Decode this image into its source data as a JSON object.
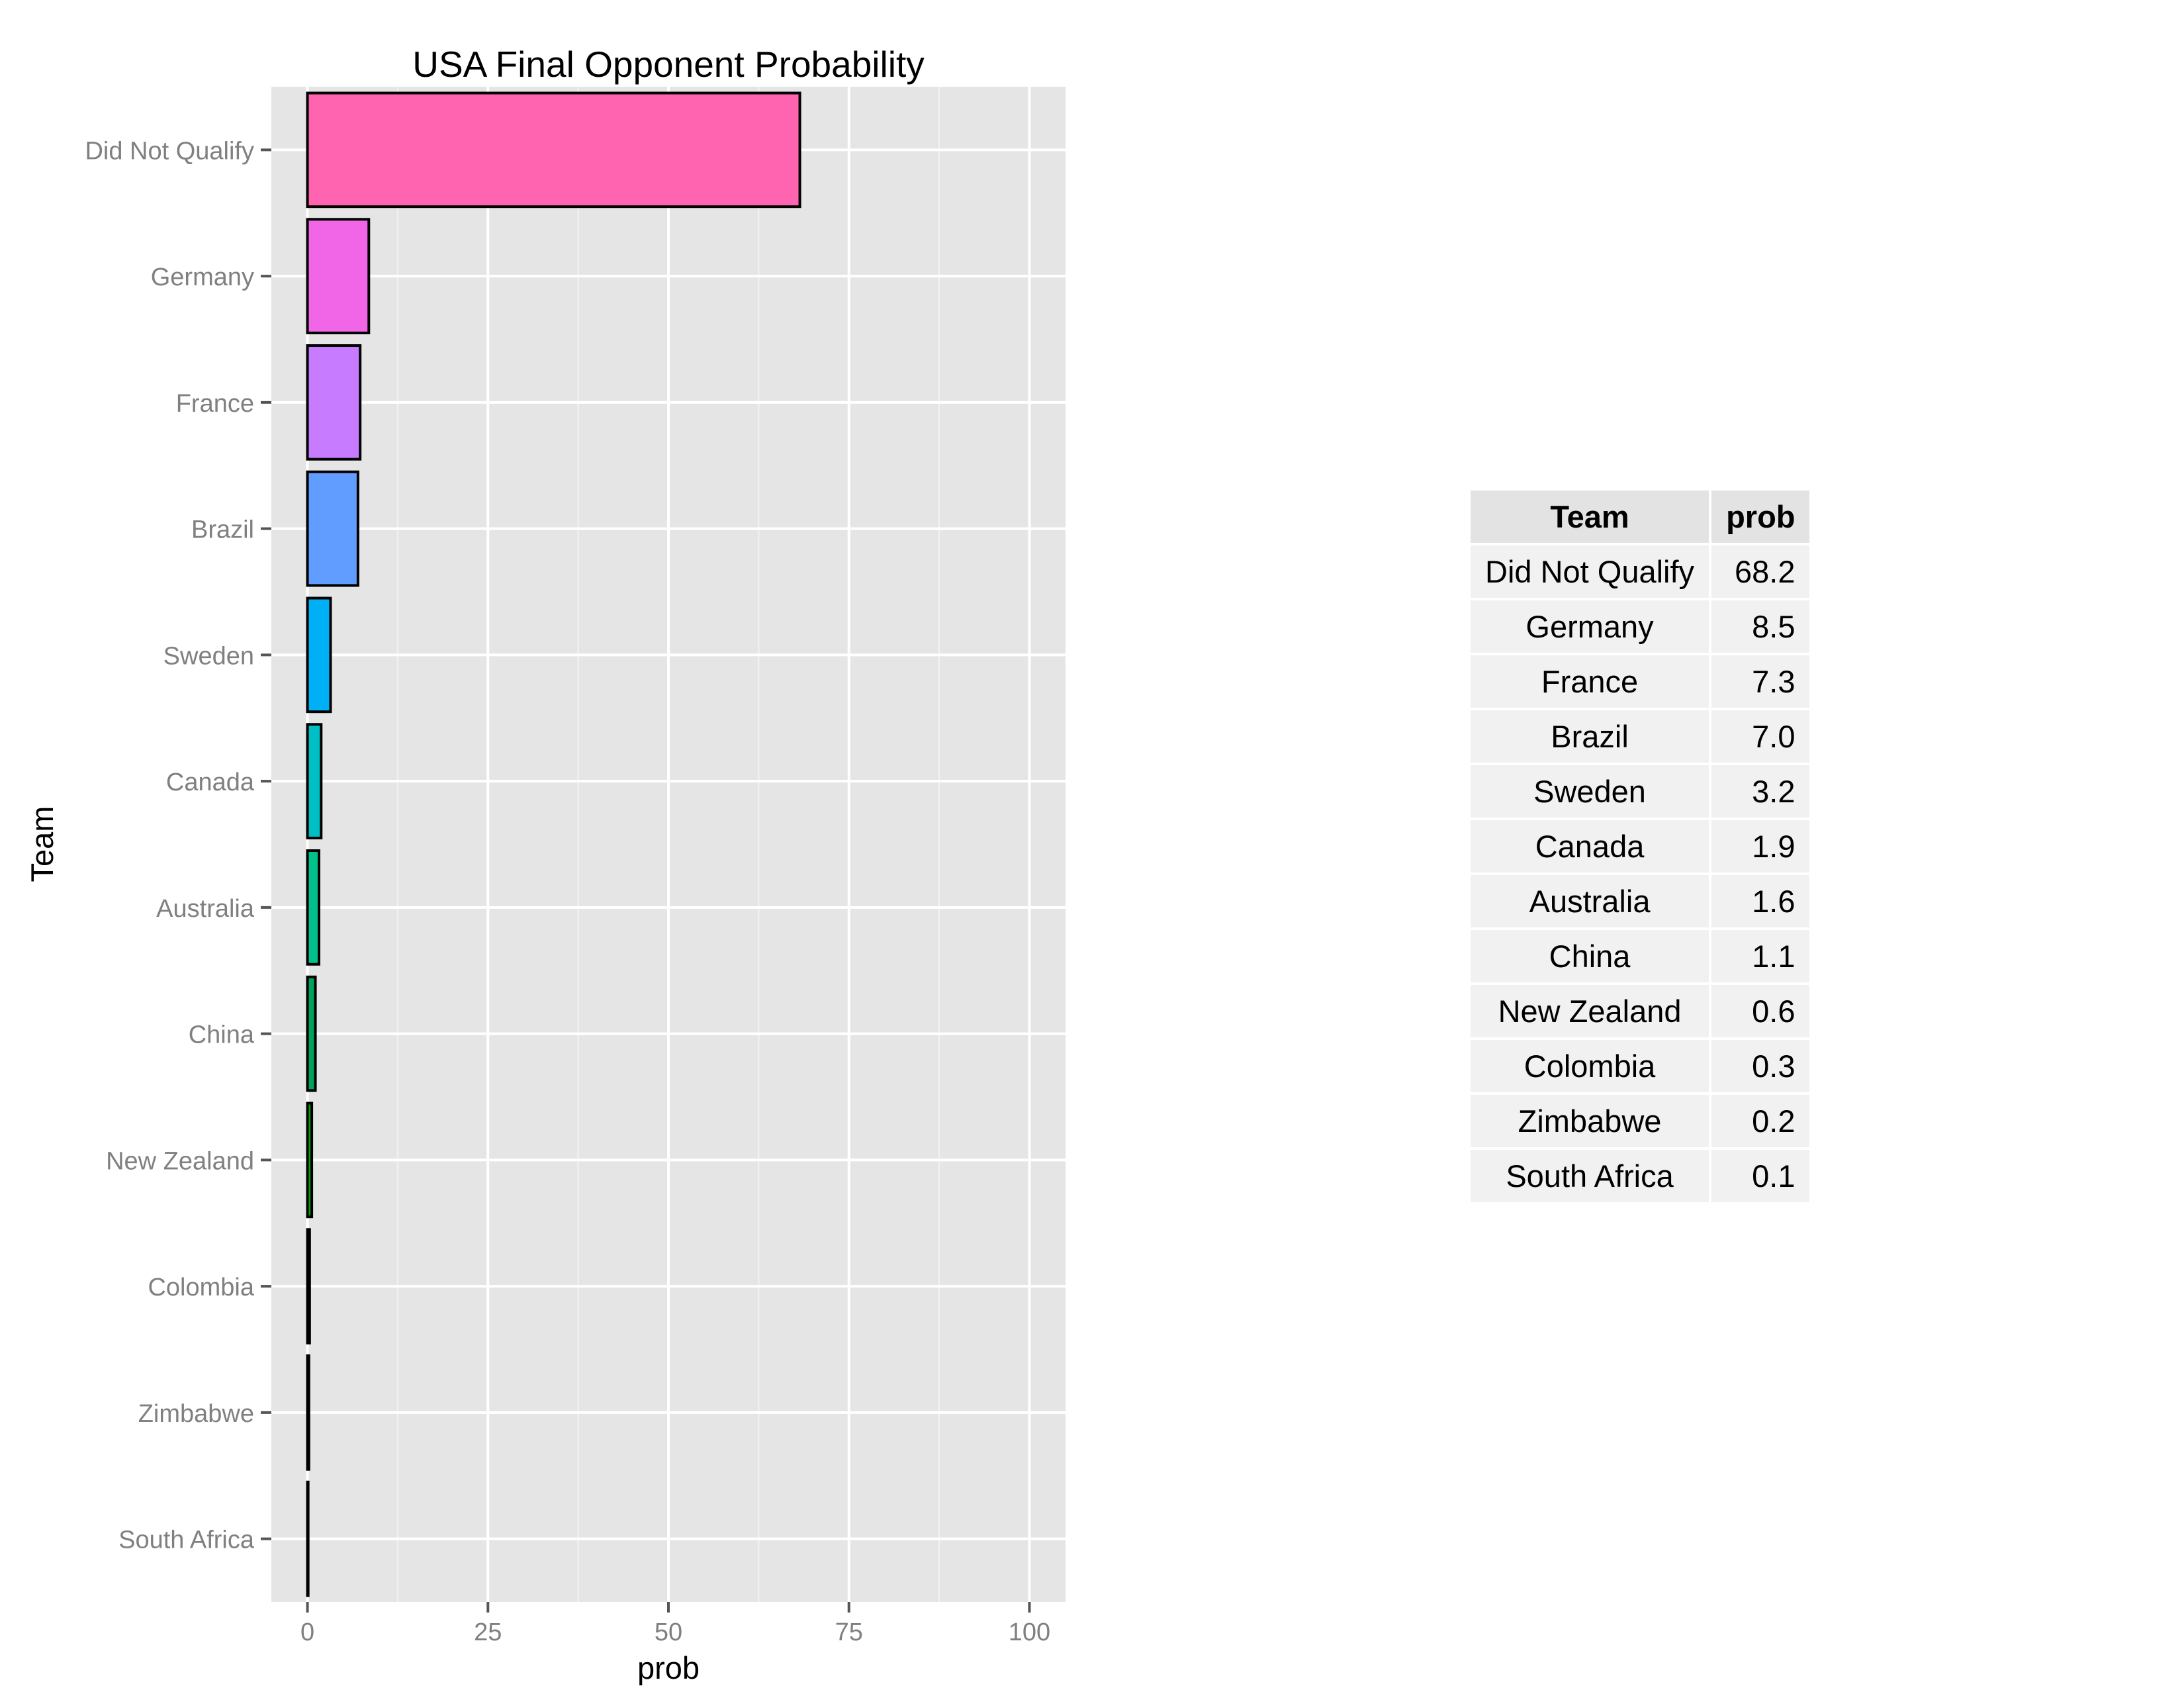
{
  "chart_data": {
    "type": "bar",
    "orientation": "horizontal",
    "title": "USA Final Opponent Probability",
    "xlabel": "prob",
    "ylabel": "Team",
    "xlim": [
      -5,
      105
    ],
    "xticks": [
      0,
      25,
      50,
      75,
      100
    ],
    "grid": true,
    "categories": [
      "Did Not Qualify",
      "Germany",
      "France",
      "Brazil",
      "Sweden",
      "Canada",
      "Australia",
      "China",
      "New Zealand",
      "Colombia",
      "Zimbabwe",
      "South Africa"
    ],
    "values": [
      68.2,
      8.5,
      7.3,
      7.0,
      3.2,
      1.9,
      1.6,
      1.1,
      0.6,
      0.3,
      0.2,
      0.1
    ],
    "colors": [
      "#FF64B0",
      "#F066E6",
      "#C77CFF",
      "#619CFF",
      "#00B0F6",
      "#00BFC4",
      "#00C08B",
      "#00A35C",
      "#00A800",
      "#5BB300",
      "#8FAA00",
      "#B49A00"
    ]
  },
  "table": {
    "headers": [
      "Team",
      "prob"
    ],
    "rows": [
      [
        "Did Not Qualify",
        "68.2"
      ],
      [
        "Germany",
        "8.5"
      ],
      [
        "France",
        "7.3"
      ],
      [
        "Brazil",
        "7.0"
      ],
      [
        "Sweden",
        "3.2"
      ],
      [
        "Canada",
        "1.9"
      ],
      [
        "Australia",
        "1.6"
      ],
      [
        "China",
        "1.1"
      ],
      [
        "New Zealand",
        "0.6"
      ],
      [
        "Colombia",
        "0.3"
      ],
      [
        "Zimbabwe",
        "0.2"
      ],
      [
        "South Africa",
        "0.1"
      ]
    ]
  }
}
